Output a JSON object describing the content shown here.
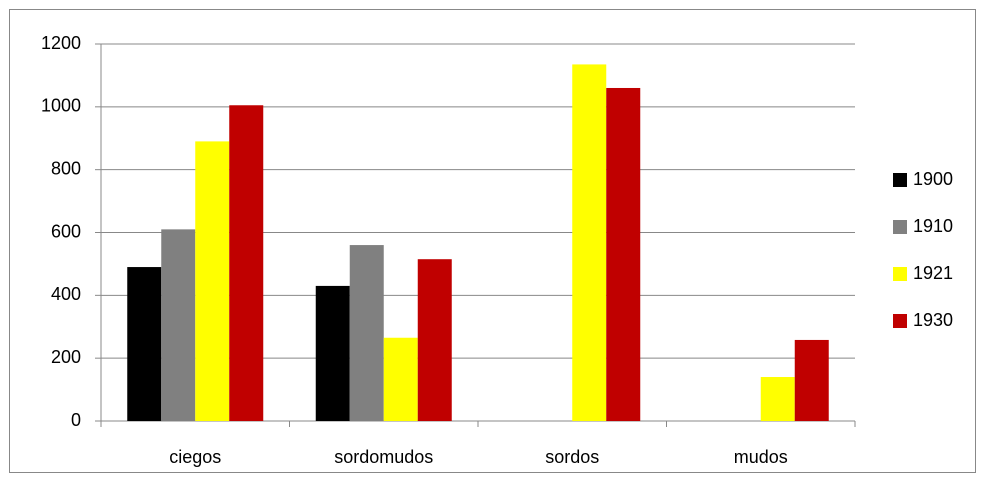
{
  "chart_data": {
    "type": "bar",
    "categories": [
      "ciegos",
      "sordomudos",
      "sordos",
      "mudos"
    ],
    "series": [
      {
        "name": "1900",
        "color": "#000000",
        "values": [
          490,
          430,
          null,
          null
        ]
      },
      {
        "name": "1910",
        "color": "#808080",
        "values": [
          610,
          560,
          null,
          null
        ]
      },
      {
        "name": "1921",
        "color": "#ffff00",
        "values": [
          890,
          265,
          1135,
          140
        ]
      },
      {
        "name": "1930",
        "color": "#c00000",
        "values": [
          1005,
          515,
          1060,
          258
        ]
      }
    ],
    "ylim": [
      0,
      1200
    ],
    "yticks": [
      0,
      200,
      400,
      600,
      800,
      1000,
      1200
    ],
    "grid": true,
    "legend": "right"
  }
}
